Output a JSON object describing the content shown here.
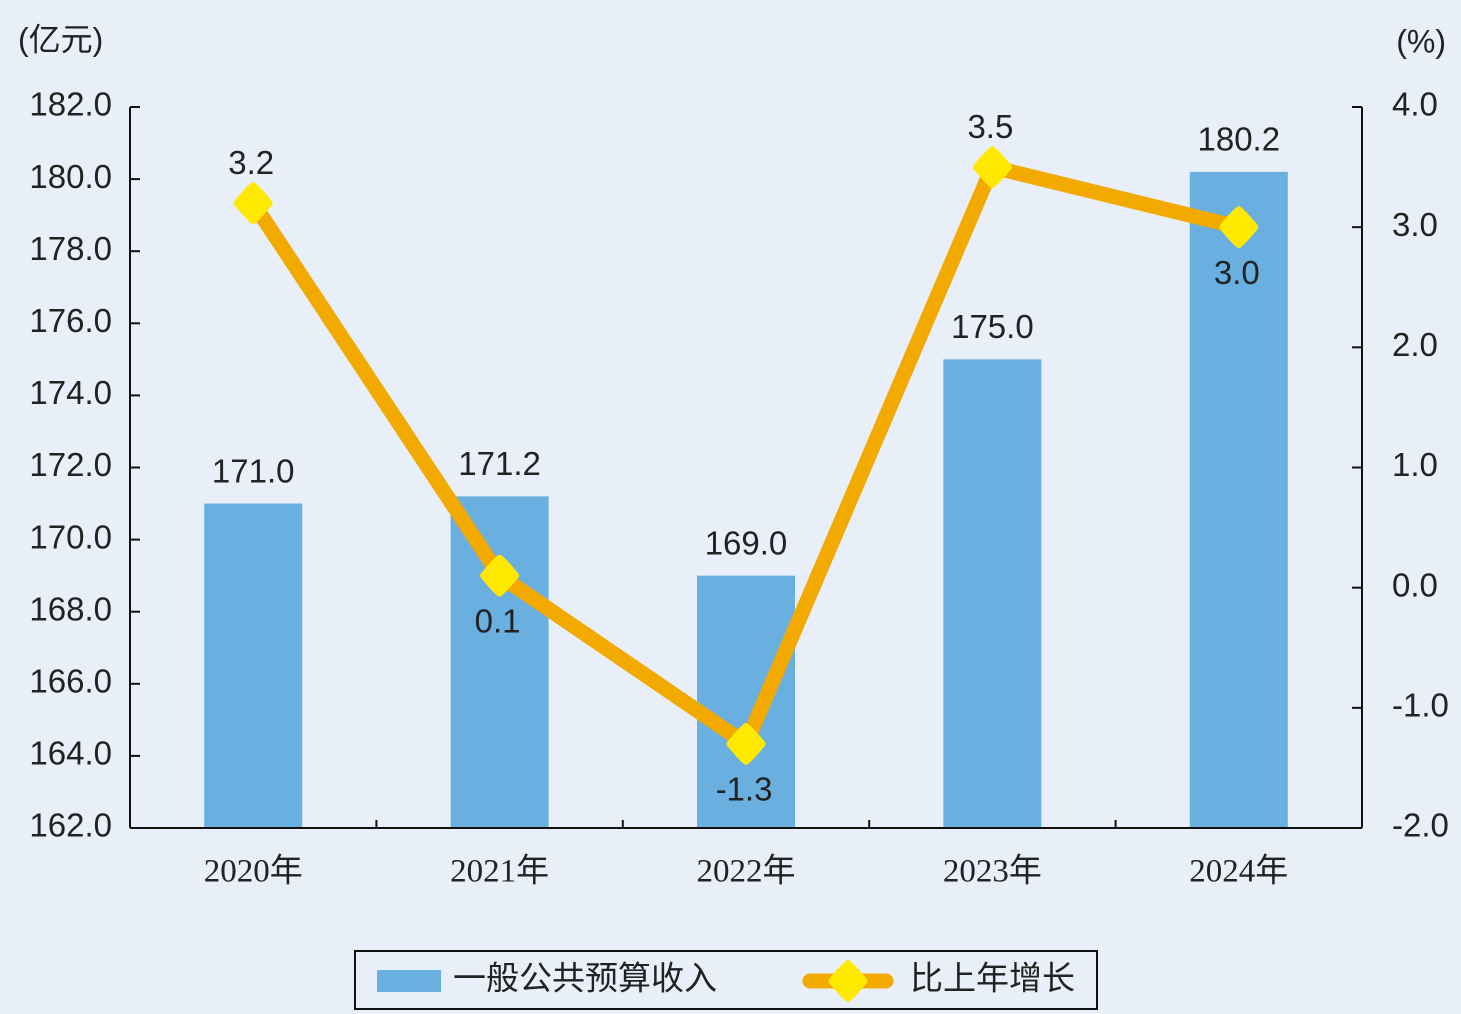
{
  "chart_data": {
    "type": "bar",
    "y_label": "(亿元)",
    "y2_label": "(%)",
    "categories": [
      "2020年",
      "2021年",
      "2022年",
      "2023年",
      "2024年"
    ],
    "series": [
      {
        "name": "一般公共预算收入",
        "type": "bar",
        "axis": "y",
        "color": "#69b0e1",
        "values": [
          171.0,
          171.2,
          169.0,
          175.0,
          180.2
        ],
        "value_labels": [
          "171.0",
          "171.2",
          "169.0",
          "175.0",
          "180.2"
        ]
      },
      {
        "name": "比上年增长",
        "type": "line",
        "axis": "y2",
        "color": "#f2a900",
        "marker_color": "#ffe900",
        "values": [
          3.2,
          0.1,
          -1.3,
          3.5,
          3.0
        ],
        "value_labels": [
          "3.2",
          "0.1",
          "-1.3",
          "3.5",
          "3.0"
        ]
      }
    ],
    "ylim": [
      162,
      182
    ],
    "yticks": [
      {
        "value": 162,
        "label": "162.0"
      },
      {
        "value": 164,
        "label": "164.0"
      },
      {
        "value": 166,
        "label": "166.0"
      },
      {
        "value": 168,
        "label": "168.0"
      },
      {
        "value": 170,
        "label": "170.0"
      },
      {
        "value": 172,
        "label": "172.0"
      },
      {
        "value": 174,
        "label": "174.0"
      },
      {
        "value": 176,
        "label": "176.0"
      },
      {
        "value": 178,
        "label": "178.0"
      },
      {
        "value": 180,
        "label": "180.0"
      },
      {
        "value": 182,
        "label": "182.0"
      }
    ],
    "y2lim": [
      -2,
      4
    ],
    "y2ticks": [
      {
        "value": -2,
        "label": "-2.0"
      },
      {
        "value": -1,
        "label": "-1.0"
      },
      {
        "value": 0,
        "label": "0.0"
      },
      {
        "value": 1,
        "label": "1.0"
      },
      {
        "value": 2,
        "label": "2.0"
      },
      {
        "value": 3,
        "label": "3.0"
      },
      {
        "value": 4,
        "label": "4.0"
      }
    ],
    "legend": "bottom"
  }
}
